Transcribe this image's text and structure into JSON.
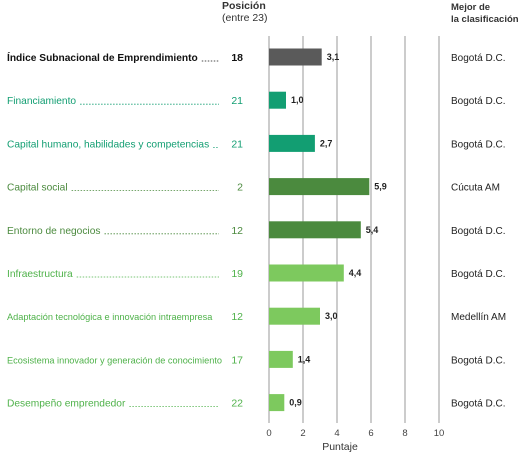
{
  "header": {
    "position_title": "Posición",
    "position_subtitle": "(entre 23)",
    "best_title_line1": "Mejor de",
    "best_title_line2": "la clasificación"
  },
  "colors": {
    "overall": "#5a5a5a",
    "teal": "#129e72",
    "dark_green": "#4b8a3e",
    "light_green": "#7dc95e",
    "grid": "#9a9a9a"
  },
  "chart_data": {
    "type": "bar",
    "orientation": "horizontal",
    "xlabel": "Puntaje",
    "xlim": [
      0,
      10
    ],
    "xticks": [
      0,
      2,
      4,
      6,
      8,
      10
    ],
    "grid": true,
    "rows": [
      {
        "label": "Índice Subnacional de Emprendimiento",
        "position": "18",
        "value": 3.1,
        "value_label": "3,1",
        "best": "Bogotá D.C.",
        "color_group": "overall"
      },
      {
        "label": "Financiamiento",
        "position": "21",
        "value": 1.0,
        "value_label": "1,0",
        "best": "Bogotá D.C.",
        "color_group": "teal"
      },
      {
        "label": "Capital humano, habilidades y competencias",
        "position": "21",
        "value": 2.7,
        "value_label": "2,7",
        "best": "Bogotá D.C.",
        "color_group": "teal"
      },
      {
        "label": "Capital social",
        "position": "2",
        "value": 5.9,
        "value_label": "5,9",
        "best": "Cúcuta AM",
        "color_group": "dark_green"
      },
      {
        "label": "Entorno de negocios",
        "position": "12",
        "value": 5.4,
        "value_label": "5,4",
        "best": "Bogotá D.C.",
        "color_group": "dark_green"
      },
      {
        "label": "Infraestructura",
        "position": "19",
        "value": 4.4,
        "value_label": "4,4",
        "best": "Bogotá D.C.",
        "color_group": "light_green"
      },
      {
        "label": "Adaptación tecnológica e innovación intraempresa",
        "position": "12",
        "value": 3.0,
        "value_label": "3,0",
        "best": "Medellín AM",
        "color_group": "light_green"
      },
      {
        "label": "Ecosistema innovador y generación de conocimiento",
        "position": "17",
        "value": 1.4,
        "value_label": "1,4",
        "best": "Bogotá D.C.",
        "color_group": "light_green"
      },
      {
        "label": "Desempeño emprendedor",
        "position": "22",
        "value": 0.9,
        "value_label": "0,9",
        "best": "Bogotá D.C.",
        "color_group": "light_green"
      }
    ]
  }
}
